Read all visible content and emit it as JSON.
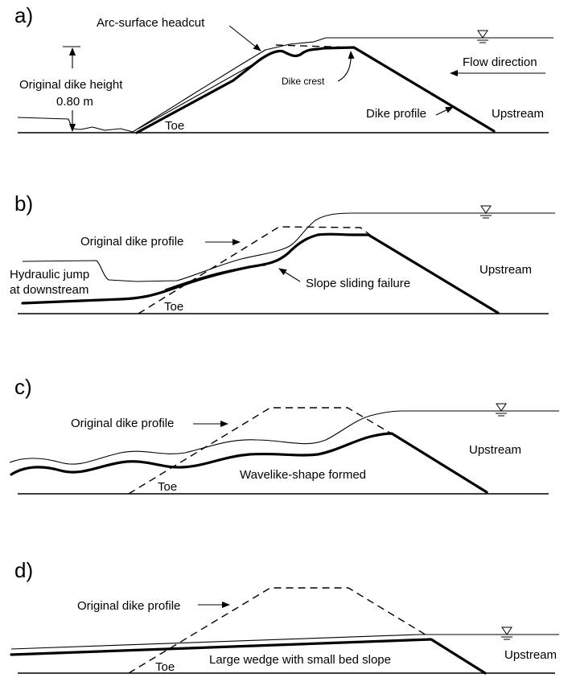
{
  "panels": [
    {
      "id": "a",
      "label": "a)",
      "labels": {
        "headcut": "Arc-surface headcut",
        "height_title": "Original dike height",
        "height_value": "0.80 m",
        "crest": "Dike crest",
        "flow": "Flow direction",
        "profile": "Dike profile",
        "upstream": "Upstream",
        "toe": "Toe"
      }
    },
    {
      "id": "b",
      "label": "b)",
      "labels": {
        "original": "Original dike profile",
        "jump_line1": "Hydraulic jump",
        "jump_line2": "at downstream",
        "sliding": "Slope sliding failure",
        "upstream": "Upstream",
        "toe": "Toe"
      }
    },
    {
      "id": "c",
      "label": "c)",
      "labels": {
        "original": "Original dike profile",
        "wavelike": "Wavelike-shape formed",
        "upstream": "Upstream",
        "toe": "Toe"
      }
    },
    {
      "id": "d",
      "label": "d)",
      "labels": {
        "original": "Original dike profile",
        "wedge": "Large wedge with small bed slope",
        "upstream": "Upstream",
        "toe": "Toe"
      }
    }
  ],
  "symbols": {
    "water_level": "water-level-icon"
  },
  "colors": {
    "ink": "#000000",
    "background": "#ffffff"
  }
}
